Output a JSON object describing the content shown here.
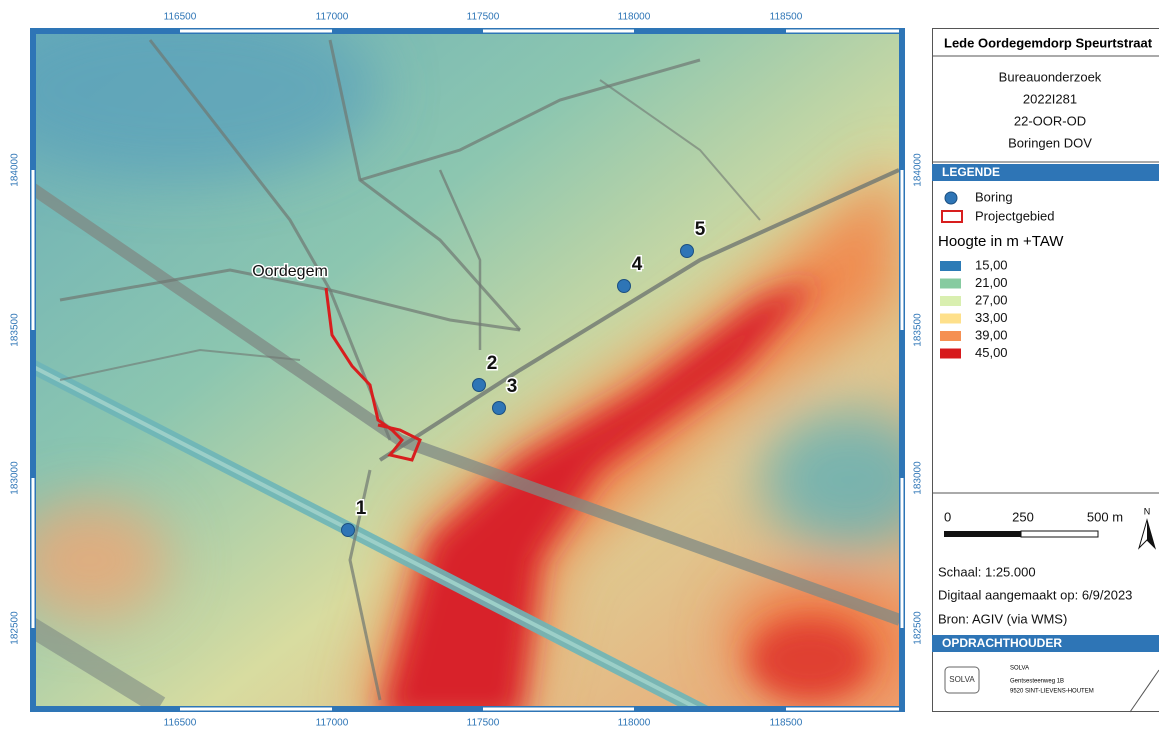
{
  "map": {
    "x_labels": [
      "116500",
      "117000",
      "117500",
      "118000",
      "118500"
    ],
    "y_labels": [
      "184000",
      "183500",
      "183000",
      "182500"
    ],
    "place": "Oordegem",
    "borings": [
      "1",
      "2",
      "3",
      "4",
      "5"
    ]
  },
  "legend": {
    "title": "Lede Oordegemdorp Speurtstraat",
    "info": [
      "Bureauonderzoek",
      "2022I281",
      "22-OOR-OD",
      "Boringen DOV"
    ],
    "header": "LEGENDE",
    "items": [
      "Boring",
      "Projectgebied"
    ],
    "elevation_title": "Hoogte in m +TAW",
    "elevation_classes": [
      {
        "label": "15,00",
        "color": "#2c7bb6"
      },
      {
        "label": "21,00",
        "color": "#86cba0"
      },
      {
        "label": "27,00",
        "color": "#d9efb0"
      },
      {
        "label": "33,00",
        "color": "#fee08b"
      },
      {
        "label": "39,00",
        "color": "#f59053"
      },
      {
        "label": "45,00",
        "color": "#d7191c"
      }
    ],
    "scale": {
      "labels": [
        "0",
        "250",
        "500 m"
      ],
      "north": "N",
      "ratio": "Schaal:   1:25.000",
      "date": "Digitaal aangemaakt op: 6/9/2023",
      "source": "Bron: AGIV (via WMS)"
    },
    "client_header": "OPDRACHTHOUDER",
    "client": {
      "logo": "SOLVA",
      "name": "SOLVA",
      "address": [
        "Gentsesteenweg 1B",
        "9520 SINT-LIEVENS-HOUTEM"
      ]
    }
  }
}
